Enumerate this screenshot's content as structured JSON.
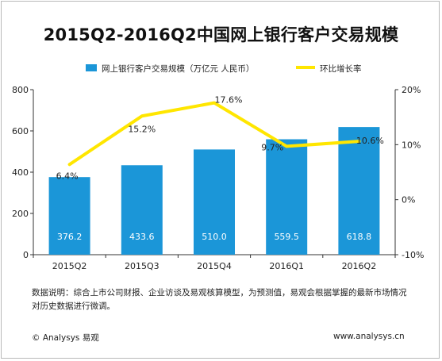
{
  "title": "2015Q2-2016Q2中国网上银行客户交易规模",
  "chart_data": {
    "type": "bar",
    "categories": [
      "2015Q2",
      "2015Q3",
      "2015Q4",
      "2016Q1",
      "2016Q2"
    ],
    "series": [
      {
        "name": "网上银行客户交易规模（万亿元 人民币）",
        "type": "bar",
        "axis": "left",
        "color": "#1b96d8",
        "values": [
          376.2,
          433.6,
          510.0,
          559.5,
          618.8
        ],
        "labels": [
          "376.2",
          "433.6",
          "510.0",
          "559.5",
          "618.8"
        ]
      },
      {
        "name": "环比增长率",
        "type": "line",
        "axis": "right",
        "color": "#ffe600",
        "values": [
          6.4,
          15.2,
          17.6,
          9.7,
          10.6
        ],
        "labels": [
          "6.4%",
          "15.2%",
          "17.6%",
          "9.7%",
          "10.6%"
        ]
      }
    ],
    "y_left": {
      "ylim": [
        0,
        800
      ],
      "ticks": [
        "0",
        "200",
        "400",
        "600",
        "800"
      ]
    },
    "y_right": {
      "ylim": [
        -10,
        20
      ],
      "ticks": [
        "-10%",
        "0%",
        "10%",
        "20%"
      ]
    },
    "legend_placement": "top",
    "grid": false
  },
  "note": "数据说明：综合上市公司财报、企业访谈及易观核算模型，为预测值，易观会根据掌握的最新市场情况对历史数据进行微调。",
  "footer": {
    "copyright": "© Analysys 易观",
    "url": "www.analysys.cn"
  }
}
